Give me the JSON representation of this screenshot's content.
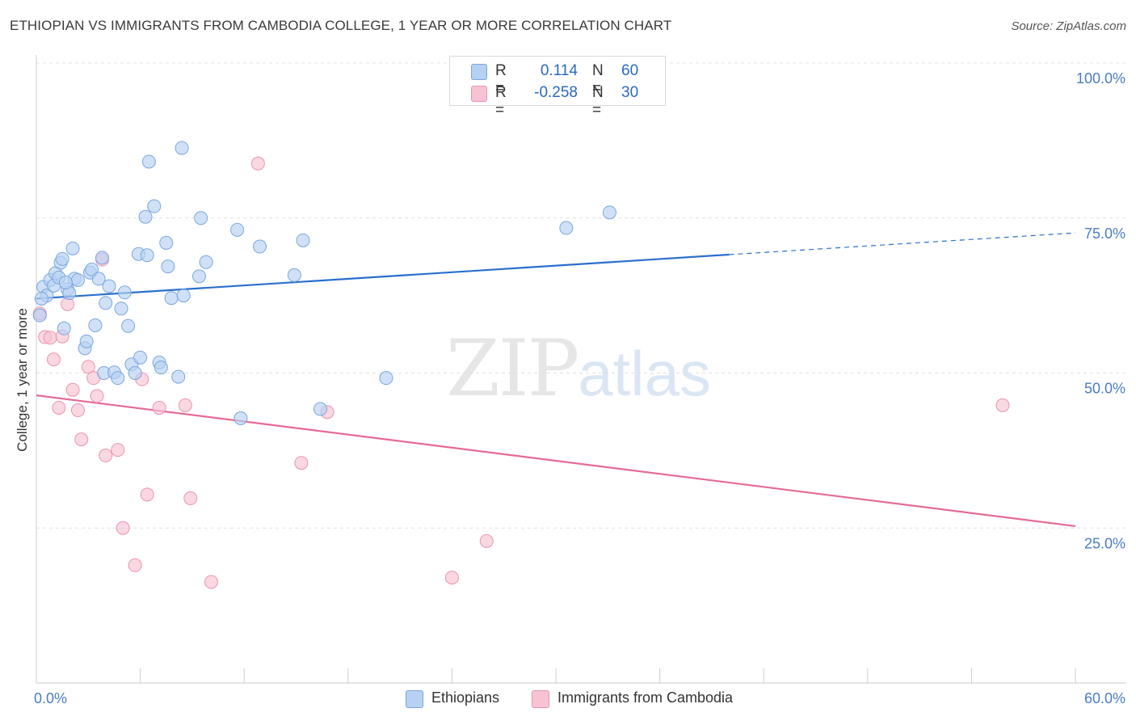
{
  "header": {
    "title": "ETHIOPIAN VS IMMIGRANTS FROM CAMBODIA COLLEGE, 1 YEAR OR MORE CORRELATION CHART",
    "source": "Source: ZipAtlas.com"
  },
  "watermark": {
    "zip": "ZIP",
    "atlas": "atlas"
  },
  "legend_top": {
    "rows": [
      {
        "r_label": "R =",
        "r_value": "0.114",
        "n_label": "N =",
        "n_value": "60"
      },
      {
        "r_label": "R =",
        "r_value": "-0.258",
        "n_label": "N =",
        "n_value": "30"
      }
    ]
  },
  "legend_bottom": {
    "items": [
      {
        "label": "Ethiopians"
      },
      {
        "label": "Immigrants from Cambodia"
      }
    ]
  },
  "colors": {
    "blue_fill": "#b7d1f2",
    "blue_stroke": "#7aa6df",
    "blue_line": "#2a6fcc",
    "pink_fill": "#f7c3d3",
    "pink_stroke": "#ea94b0",
    "pink_line": "#e56a97",
    "tick_text": "#4a7cc7",
    "grid": "#e0e0e0"
  },
  "chart_data": {
    "type": "scatter",
    "title": "ETHIOPIAN VS IMMIGRANTS FROM CAMBODIA COLLEGE, 1 YEAR OR MORE CORRELATION CHART",
    "xlabel": "",
    "ylabel": "College, 1 year or more",
    "xlim": [
      0,
      60
    ],
    "ylim": [
      0,
      100
    ],
    "x_ticks_labeled": [
      {
        "value": 0,
        "label": "0.0%"
      },
      {
        "value": 60,
        "label": "60.0%"
      }
    ],
    "x_ticks_minor": [
      0,
      6,
      12,
      18,
      24,
      30,
      36,
      42,
      48,
      54,
      60
    ],
    "y_ticks": [
      {
        "value": 100,
        "label": "100.0%"
      },
      {
        "value": 75,
        "label": "75.0%"
      },
      {
        "value": 50,
        "label": "50.0%"
      },
      {
        "value": 25,
        "label": "25.0%"
      }
    ],
    "grid": true,
    "legend_position": "bottom",
    "series": [
      {
        "name": "Ethiopians",
        "color": "#b7d1f2",
        "R": 0.114,
        "N": 60,
        "trend": {
          "x": [
            0,
            40
          ],
          "y": [
            62.0,
            69.1
          ],
          "dashed_to": [
            60,
            72.6
          ]
        },
        "points": [
          [
            0.2,
            59.3
          ],
          [
            0.4,
            63.9
          ],
          [
            0.6,
            62.5
          ],
          [
            0.8,
            65.0
          ],
          [
            1.0,
            64.1
          ],
          [
            1.1,
            66.1
          ],
          [
            1.3,
            65.4
          ],
          [
            1.4,
            67.8
          ],
          [
            1.5,
            68.4
          ],
          [
            1.6,
            57.2
          ],
          [
            1.8,
            63.5
          ],
          [
            1.9,
            62.9
          ],
          [
            2.1,
            70.1
          ],
          [
            2.2,
            65.2
          ],
          [
            2.4,
            65.0
          ],
          [
            2.8,
            54.0
          ],
          [
            2.9,
            55.1
          ],
          [
            3.1,
            66.2
          ],
          [
            3.2,
            66.7
          ],
          [
            3.4,
            57.7
          ],
          [
            3.6,
            65.2
          ],
          [
            3.8,
            68.6
          ],
          [
            3.9,
            50.0
          ],
          [
            4.0,
            61.3
          ],
          [
            4.2,
            64.0
          ],
          [
            4.5,
            50.1
          ],
          [
            4.7,
            49.2
          ],
          [
            4.9,
            60.4
          ],
          [
            5.1,
            63.0
          ],
          [
            5.3,
            57.6
          ],
          [
            5.5,
            51.4
          ],
          [
            5.7,
            50.0
          ],
          [
            5.9,
            69.2
          ],
          [
            6.0,
            52.5
          ],
          [
            6.3,
            75.2
          ],
          [
            6.4,
            69.0
          ],
          [
            6.5,
            84.1
          ],
          [
            6.8,
            76.9
          ],
          [
            7.1,
            51.7
          ],
          [
            7.2,
            50.9
          ],
          [
            7.5,
            71.0
          ],
          [
            7.6,
            67.2
          ],
          [
            7.8,
            62.1
          ],
          [
            8.2,
            49.4
          ],
          [
            8.4,
            86.3
          ],
          [
            8.5,
            62.5
          ],
          [
            9.4,
            65.6
          ],
          [
            9.5,
            75.0
          ],
          [
            9.8,
            67.9
          ],
          [
            11.6,
            73.1
          ],
          [
            11.8,
            42.7
          ],
          [
            12.9,
            70.4
          ],
          [
            14.9,
            65.8
          ],
          [
            15.4,
            71.4
          ],
          [
            16.4,
            44.2
          ],
          [
            20.2,
            49.2
          ],
          [
            30.6,
            73.4
          ],
          [
            33.1,
            75.9
          ],
          [
            0.3,
            62.0
          ],
          [
            1.7,
            64.6
          ]
        ]
      },
      {
        "name": "Immigrants from Cambodia",
        "color": "#f7c3d3",
        "R": -0.258,
        "N": 30,
        "trend": {
          "x": [
            0,
            60
          ],
          "y": [
            46.4,
            25.3
          ]
        },
        "points": [
          [
            0.2,
            59.6
          ],
          [
            0.5,
            55.8
          ],
          [
            0.8,
            55.7
          ],
          [
            1.0,
            52.2
          ],
          [
            1.3,
            44.4
          ],
          [
            1.5,
            55.9
          ],
          [
            1.8,
            61.1
          ],
          [
            2.1,
            47.3
          ],
          [
            2.4,
            44.0
          ],
          [
            2.6,
            39.3
          ],
          [
            3.0,
            51.0
          ],
          [
            3.3,
            49.2
          ],
          [
            3.5,
            46.3
          ],
          [
            3.8,
            68.3
          ],
          [
            4.0,
            36.7
          ],
          [
            4.7,
            37.6
          ],
          [
            5.0,
            25.0
          ],
          [
            5.7,
            19.0
          ],
          [
            6.1,
            49.0
          ],
          [
            6.4,
            30.4
          ],
          [
            7.1,
            44.4
          ],
          [
            8.6,
            44.8
          ],
          [
            8.9,
            29.8
          ],
          [
            10.1,
            16.3
          ],
          [
            12.8,
            83.8
          ],
          [
            15.3,
            35.5
          ],
          [
            16.8,
            43.7
          ],
          [
            24.0,
            17.0
          ],
          [
            26.0,
            22.9
          ],
          [
            55.8,
            44.8
          ]
        ]
      }
    ]
  }
}
